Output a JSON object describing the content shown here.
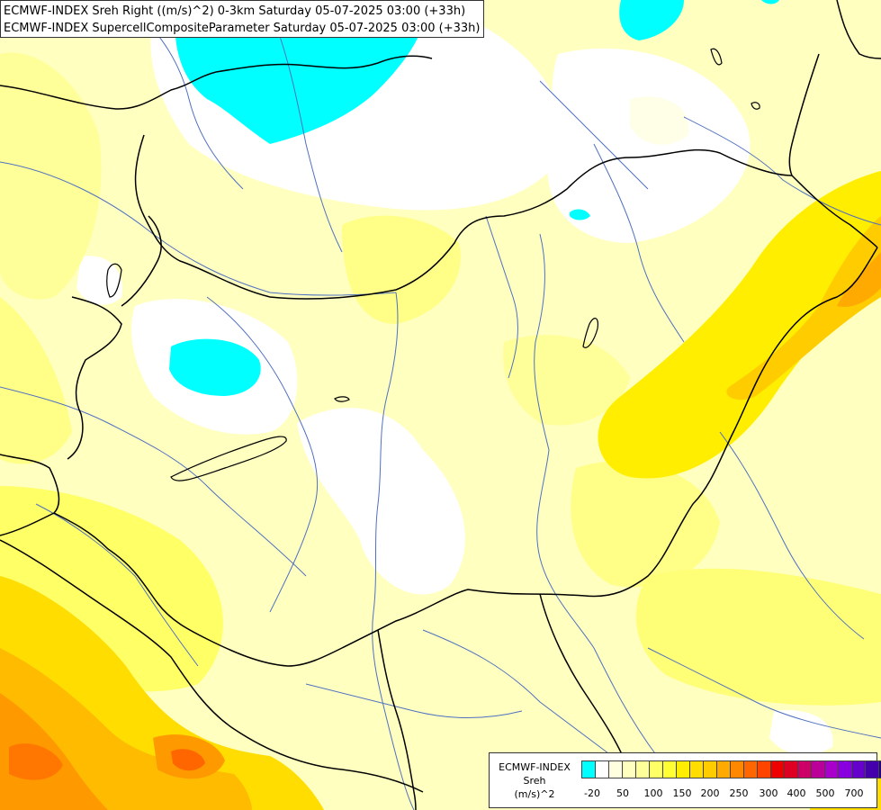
{
  "title": {
    "line1": "ECMWF-INDEX Sreh Right ((m/s)^2) 0-3km Saturday 05-07-2025 03:00 (+33h)",
    "line2": "ECMWF-INDEX SupercellCompositeParameter Saturday 05-07-2025 03:00 (+33h)"
  },
  "legend": {
    "line1": "ECMWF-INDEX",
    "line2": "Sreh",
    "line3": "(m/s)^2",
    "colors": [
      "#00ffff",
      "#ffffff",
      "#ffffe0",
      "#ffffc0",
      "#ffff99",
      "#ffff66",
      "#ffff33",
      "#ffee00",
      "#ffdd00",
      "#ffcc00",
      "#ffaa00",
      "#ff8800",
      "#ff6600",
      "#ff4400",
      "#ee0000",
      "#dd0022",
      "#cc0066",
      "#bb0099",
      "#aa00cc",
      "#8800dd",
      "#6600cc",
      "#4400aa",
      "#220088"
    ],
    "ticks": [
      "-20",
      "50",
      "100",
      "150",
      "200",
      "250",
      "300",
      "400",
      "500",
      "700"
    ]
  }
}
